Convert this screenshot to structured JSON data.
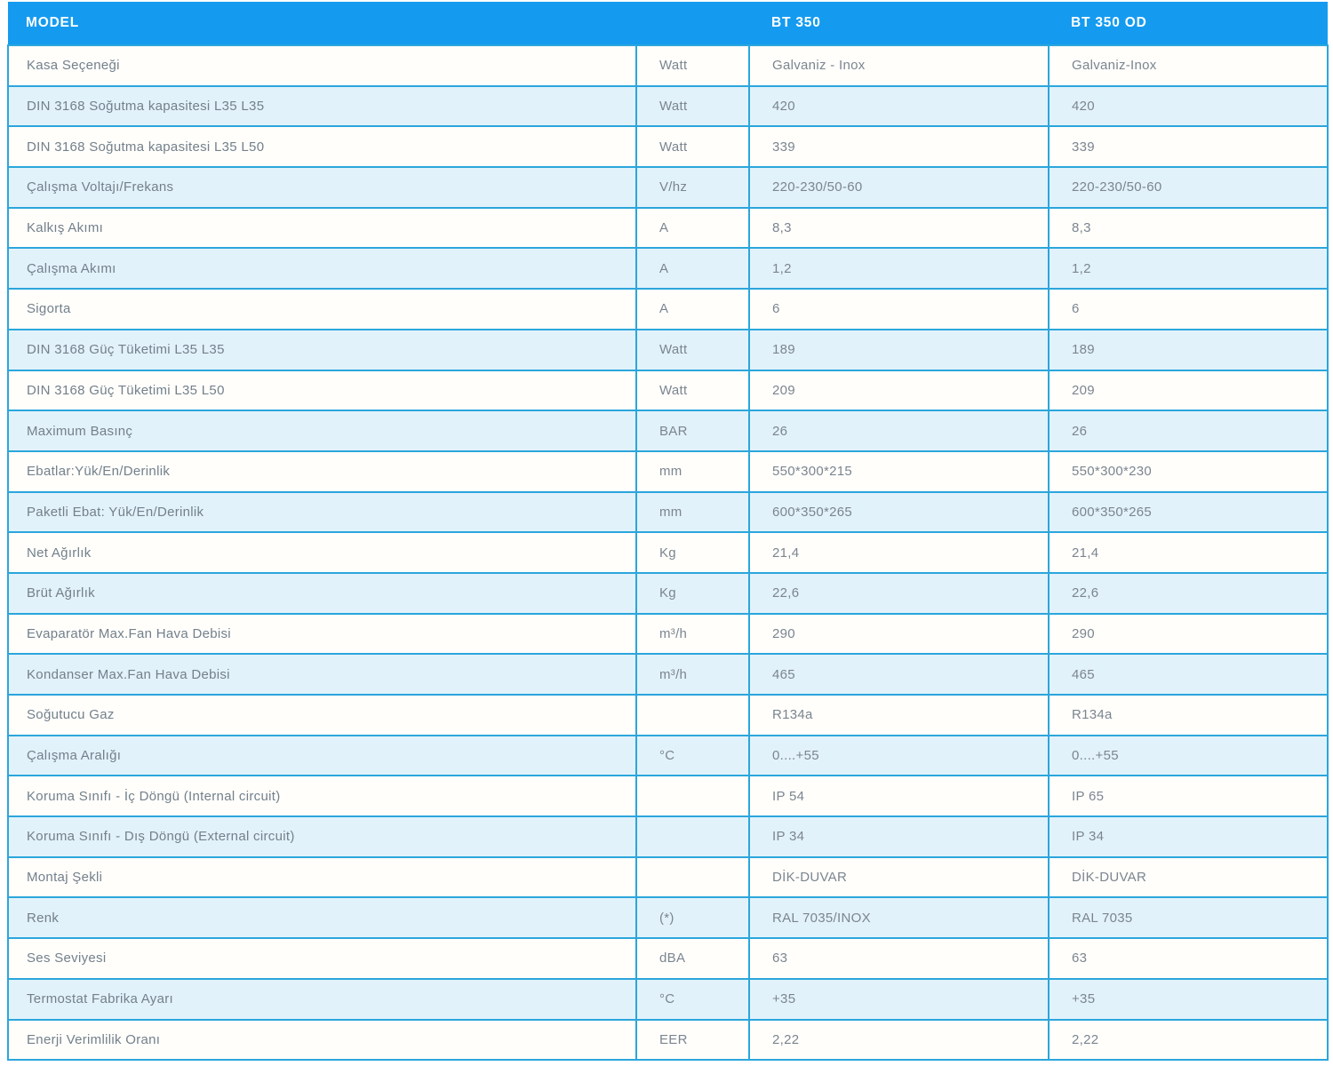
{
  "colors": {
    "header_bg": "#149bf0",
    "header_text": "#ffffff",
    "row_border": "#2ba6dc",
    "row_even_bg": "#e2f2fb",
    "row_odd_bg": "#fffefb",
    "cell_text": "#7b858f"
  },
  "table": {
    "header": {
      "model": "MODEL",
      "unit": "",
      "bt350": "BT 350",
      "bt350od": "BT 350 OD"
    },
    "rows": [
      {
        "label": "Kasa Seçeneği",
        "unit": "Watt",
        "bt350": "Galvaniz - Inox",
        "bt350od": "Galvaniz-Inox"
      },
      {
        "label": "DIN 3168 Soğutma kapasitesi L35 L35",
        "unit": "Watt",
        "bt350": "420",
        "bt350od": "420"
      },
      {
        "label": "DIN 3168 Soğutma kapasitesi L35 L50",
        "unit": "Watt",
        "bt350": "339",
        "bt350od": "339"
      },
      {
        "label": "Çalışma Voltajı/Frekans",
        "unit": "V/hz",
        "bt350": "220-230/50-60",
        "bt350od": "220-230/50-60"
      },
      {
        "label": "Kalkış Akımı",
        "unit": "A",
        "bt350": "8,3",
        "bt350od": "8,3"
      },
      {
        "label": "Çalışma Akımı",
        "unit": "A",
        "bt350": "1,2",
        "bt350od": "1,2"
      },
      {
        "label": "Sigorta",
        "unit": "A",
        "bt350": "6",
        "bt350od": "6"
      },
      {
        "label": "DIN 3168 Güç Tüketimi L35 L35",
        "unit": "Watt",
        "bt350": "189",
        "bt350od": "189"
      },
      {
        "label": "DIN 3168 Güç Tüketimi L35 L50",
        "unit": "Watt",
        "bt350": "209",
        "bt350od": "209"
      },
      {
        "label": "Maximum Basınç",
        "unit": "BAR",
        "bt350": "26",
        "bt350od": "26"
      },
      {
        "label": "Ebatlar:Yük/En/Derinlik",
        "unit": "mm",
        "bt350": "550*300*215",
        "bt350od": "550*300*230"
      },
      {
        "label": "Paketli Ebat: Yük/En/Derinlik",
        "unit": "mm",
        "bt350": "600*350*265",
        "bt350od": "600*350*265"
      },
      {
        "label": "Net Ağırlık",
        "unit": "Kg",
        "bt350": "21,4",
        "bt350od": "21,4"
      },
      {
        "label": "Brüt Ağırlık",
        "unit": "Kg",
        "bt350": "22,6",
        "bt350od": "22,6"
      },
      {
        "label": "Evaparatör Max.Fan Hava Debisi",
        "unit": "m³/h",
        "bt350": "290",
        "bt350od": "290"
      },
      {
        "label": "Kondanser Max.Fan Hava Debisi",
        "unit": "m³/h",
        "bt350": "465",
        "bt350od": "465"
      },
      {
        "label": "Soğutucu Gaz",
        "unit": "",
        "bt350": "R134a",
        "bt350od": "R134a"
      },
      {
        "label": "Çalışma Aralığı",
        "unit": "°C",
        "bt350": "0....+55",
        "bt350od": "0....+55"
      },
      {
        "label": "Koruma Sınıfı - İç Döngü (Internal circuit)",
        "unit": "",
        "bt350": "IP 54",
        "bt350od": "IP 65"
      },
      {
        "label": "Koruma Sınıfı - Dış Döngü (External circuit)",
        "unit": "",
        "bt350": "IP 34",
        "bt350od": "IP 34"
      },
      {
        "label": "Montaj Şekli",
        "unit": "",
        "bt350": "DİK-DUVAR",
        "bt350od": "DİK-DUVAR"
      },
      {
        "label": "Renk",
        "unit": "(*)",
        "bt350": "RAL 7035/INOX",
        "bt350od": "RAL 7035"
      },
      {
        "label": "Ses Seviyesi",
        "unit": "dBA",
        "bt350": "63",
        "bt350od": "63"
      },
      {
        "label": "Termostat Fabrika Ayarı",
        "unit": "°C",
        "bt350": "+35",
        "bt350od": "+35"
      },
      {
        "label": "Enerji Verimlilik Oranı",
        "unit": "EER",
        "bt350": "2,22",
        "bt350od": "2,22"
      }
    ]
  }
}
